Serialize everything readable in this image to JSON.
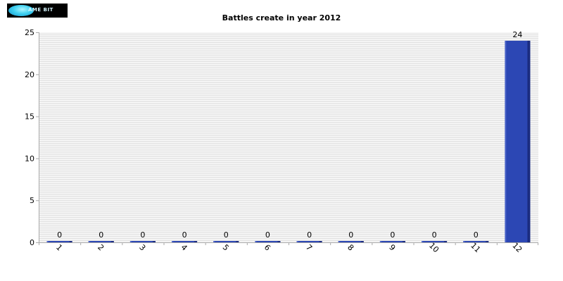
{
  "logo": {
    "text": "AME BIT"
  },
  "chart_data": {
    "type": "bar",
    "title": "Battles create in year 2012",
    "xlabel": "",
    "ylabel": "",
    "categories": [
      "1",
      "2",
      "3",
      "4",
      "5",
      "6",
      "7",
      "8",
      "9",
      "10",
      "11",
      "12"
    ],
    "values": [
      0,
      0,
      0,
      0,
      0,
      0,
      0,
      0,
      0,
      0,
      0,
      24
    ],
    "data_labels": [
      "0",
      "0",
      "0",
      "0",
      "0",
      "0",
      "0",
      "0",
      "0",
      "0",
      "0",
      "24"
    ],
    "ylim": [
      0,
      25
    ],
    "yticks": [
      0,
      5,
      10,
      15,
      20,
      25
    ],
    "grid": true,
    "legend": "none",
    "colors": {
      "bar": "#2c47b4",
      "bar_shadow": "#1b2c80",
      "bar_highlight": "#4a63c8",
      "grid_line": "#e2e2e2",
      "plot_bg": "#f4f4f4",
      "axis": "#aaaaaa",
      "text": "#000000"
    }
  }
}
